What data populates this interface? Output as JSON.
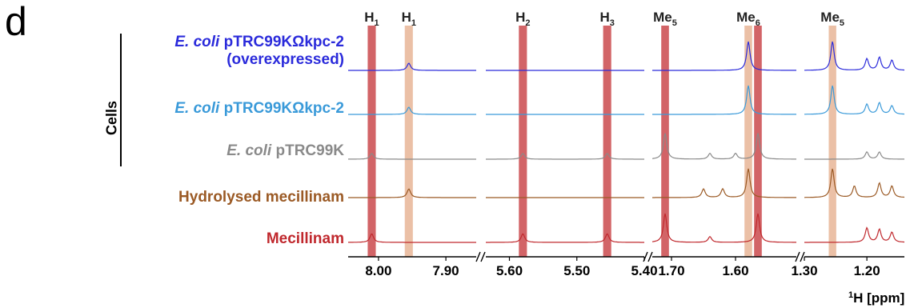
{
  "panel_label": "d",
  "group_label": "Cells",
  "samples": [
    {
      "italic": "E. coli",
      "rest": " pTRC99KΩkpc-2",
      "line2": "(overexpressed)",
      "color": "#2b2bdb"
    },
    {
      "italic": "E. coli",
      "rest": " pTRC99KΩkpc-2",
      "line2": "",
      "color": "#3a9ad9"
    },
    {
      "italic": "E. coli",
      "rest": " pTRC99K",
      "line2": "",
      "color": "#8a8a8a"
    },
    {
      "italic": "",
      "rest": "Hydrolysed mecillinam",
      "line2": "",
      "color": "#9b5a25"
    },
    {
      "italic": "",
      "rest": "Mecillinam",
      "line2": "",
      "color": "#c0282d"
    }
  ],
  "axis_title_sup": "1",
  "axis_title": "H [ppm]",
  "chart_data": {
    "type": "line",
    "axis": {
      "label": "¹H [ppm]",
      "reversed": true,
      "broken": true
    },
    "segments": [
      {
        "range": [
          8.045,
          7.855
        ],
        "ticks": [
          8.0,
          7.9
        ],
        "tick_labels": [
          "8.00",
          "7.90"
        ]
      },
      {
        "range": [
          5.635,
          5.4
        ],
        "ticks": [
          5.6,
          5.5,
          5.4
        ],
        "tick_labels": [
          "5.60",
          "5.50",
          "5.40"
        ]
      },
      {
        "range": [
          1.73,
          1.505
        ],
        "ticks": [
          1.7,
          1.6
        ],
        "tick_labels": [
          "1.70",
          "1.60"
        ]
      },
      {
        "range": [
          1.3,
          1.14
        ],
        "ticks": [
          1.3,
          1.2
        ],
        "tick_labels": [
          "1.30",
          "1.20"
        ]
      }
    ],
    "highlight_bands": [
      {
        "label": "H",
        "sub": "1",
        "center": 8.01,
        "width": 0.012,
        "color": "#c0282d"
      },
      {
        "label": "H",
        "sub": "1",
        "center": 7.955,
        "width": 0.012,
        "color": "#e3a883"
      },
      {
        "label": "H",
        "sub": "2",
        "center": 5.58,
        "width": 0.012,
        "color": "#c0282d"
      },
      {
        "label": "H",
        "sub": "3",
        "center": 5.455,
        "width": 0.012,
        "color": "#c0282d"
      },
      {
        "label": "Me",
        "sub": "5",
        "center": 1.71,
        "width": 0.012,
        "color": "#c0282d"
      },
      {
        "label": "Me",
        "sub": "6",
        "center": 1.58,
        "width": 0.012,
        "color": "#e3a883"
      },
      {
        "label": "",
        "sub": "",
        "center": 1.565,
        "width": 0.012,
        "color": "#c0282d"
      },
      {
        "label": "Me",
        "sub": "5",
        "center": 1.255,
        "width": 0.012,
        "color": "#e3a883"
      }
    ],
    "series": [
      {
        "peaks": [
          {
            "ppm": 7.955,
            "h": 0.25
          },
          {
            "ppm": 1.58,
            "h": 1.0
          },
          {
            "ppm": 1.255,
            "h": 1.0
          },
          {
            "ppm": 1.2,
            "h": 0.4
          },
          {
            "ppm": 1.18,
            "h": 0.45
          },
          {
            "ppm": 1.16,
            "h": 0.35
          }
        ]
      },
      {
        "peaks": [
          {
            "ppm": 7.955,
            "h": 0.25
          },
          {
            "ppm": 1.58,
            "h": 1.0
          },
          {
            "ppm": 1.255,
            "h": 1.0
          },
          {
            "ppm": 1.2,
            "h": 0.35
          },
          {
            "ppm": 1.18,
            "h": 0.4
          },
          {
            "ppm": 1.16,
            "h": 0.3
          }
        ]
      },
      {
        "peaks": [
          {
            "ppm": 8.01,
            "h": 0.2
          },
          {
            "ppm": 5.58,
            "h": 0.2
          },
          {
            "ppm": 5.455,
            "h": 0.2
          },
          {
            "ppm": 1.71,
            "h": 0.9
          },
          {
            "ppm": 1.565,
            "h": 0.9
          },
          {
            "ppm": 1.64,
            "h": 0.2
          },
          {
            "ppm": 1.6,
            "h": 0.2
          },
          {
            "ppm": 1.2,
            "h": 0.25
          },
          {
            "ppm": 1.18,
            "h": 0.25
          }
        ]
      },
      {
        "peaks": [
          {
            "ppm": 7.955,
            "h": 0.3
          },
          {
            "ppm": 1.58,
            "h": 1.0
          },
          {
            "ppm": 1.255,
            "h": 1.0
          },
          {
            "ppm": 1.65,
            "h": 0.3
          },
          {
            "ppm": 1.62,
            "h": 0.3
          },
          {
            "ppm": 1.22,
            "h": 0.4
          },
          {
            "ppm": 1.18,
            "h": 0.5
          },
          {
            "ppm": 1.16,
            "h": 0.4
          }
        ]
      },
      {
        "peaks": [
          {
            "ppm": 8.01,
            "h": 0.3
          },
          {
            "ppm": 5.58,
            "h": 0.3
          },
          {
            "ppm": 5.455,
            "h": 0.3
          },
          {
            "ppm": 1.71,
            "h": 1.0
          },
          {
            "ppm": 1.565,
            "h": 1.0
          },
          {
            "ppm": 1.64,
            "h": 0.2
          },
          {
            "ppm": 1.2,
            "h": 0.5
          },
          {
            "ppm": 1.18,
            "h": 0.45
          },
          {
            "ppm": 1.16,
            "h": 0.35
          }
        ]
      }
    ]
  }
}
